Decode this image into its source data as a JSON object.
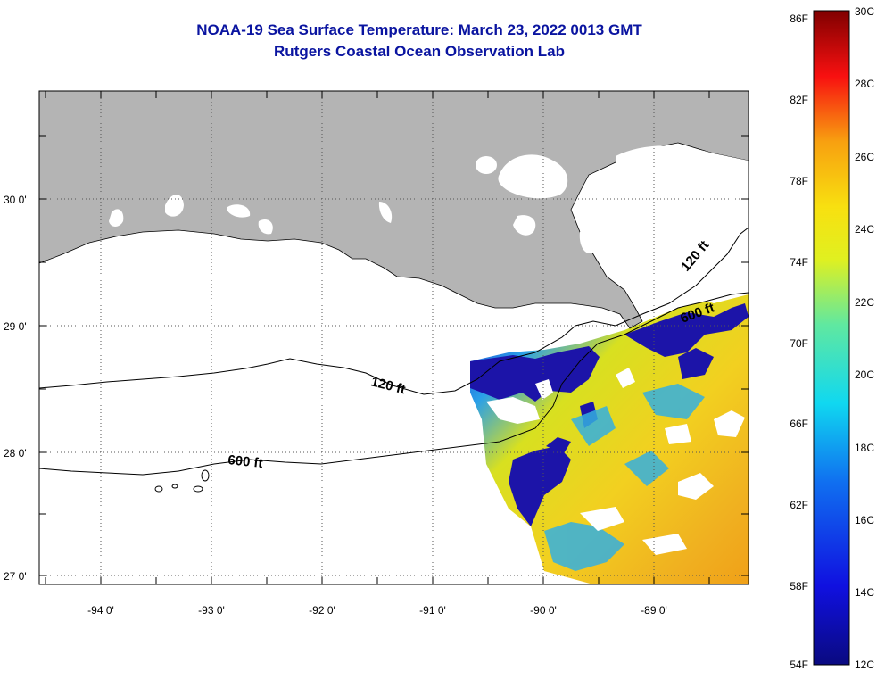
{
  "title": {
    "line1": "NOAA-19 Sea Surface Temperature:  March 23, 2022 0013 GMT",
    "line2": "Rutgers Coastal Ocean Observation Lab"
  },
  "map": {
    "lon_labels": [
      "-94 0'",
      "-93 0'",
      "-92 0'",
      "-91 0'",
      "-90 0'",
      "-89 0'"
    ],
    "lat_labels": [
      "30 0'",
      "29 0'",
      "28 0'",
      "27 0'"
    ],
    "contour_labels": [
      "120 ft",
      "600 ft",
      "120 ft",
      "600 ft"
    ],
    "colors": {
      "land": "#b4b4b4",
      "cloud": "#ffffff",
      "frame": "#000000"
    }
  },
  "colorbar": {
    "fahrenheit_labels": [
      "86F",
      "82F",
      "78F",
      "74F",
      "70F",
      "66F",
      "62F",
      "58F",
      "54F"
    ],
    "celsius_labels": [
      "30C",
      "28C",
      "26C",
      "24C",
      "22C",
      "20C",
      "18C",
      "16C",
      "14C",
      "12C"
    ]
  }
}
